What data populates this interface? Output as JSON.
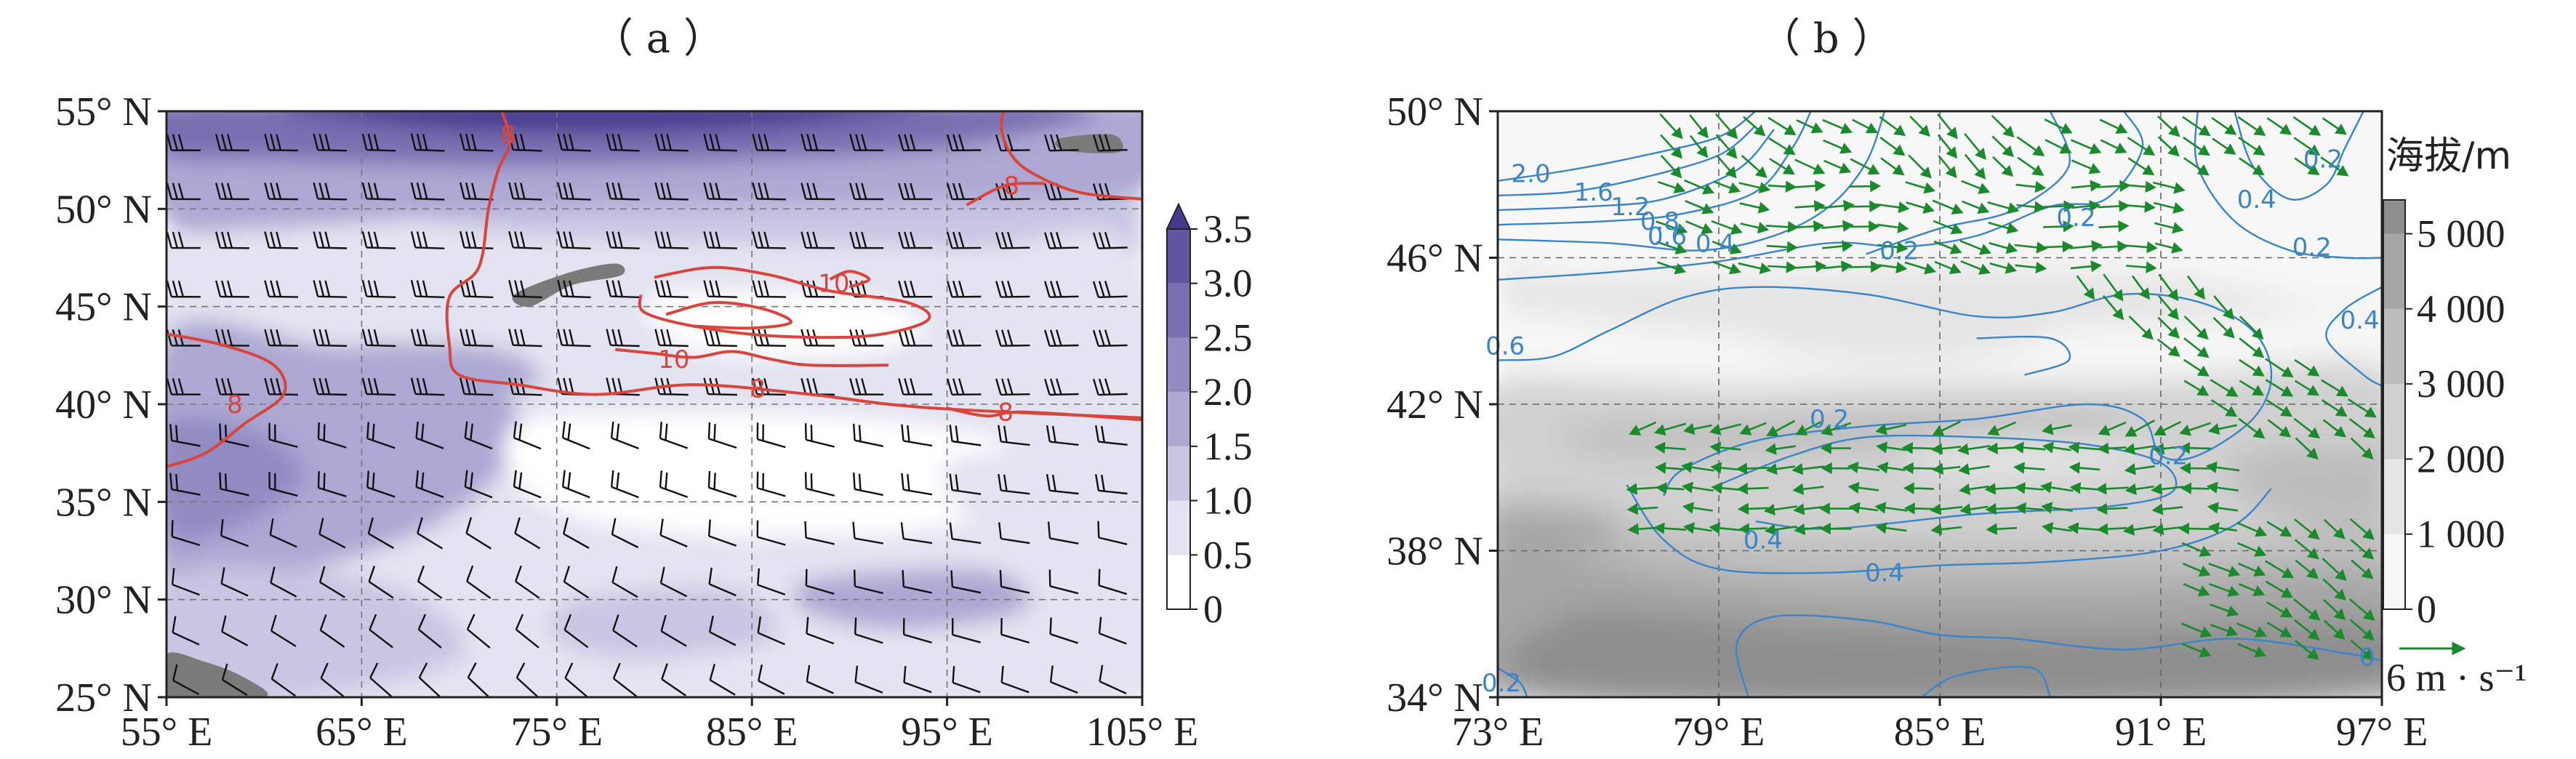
{
  "panels": {
    "a": {
      "label": "（ a ）"
    },
    "b": {
      "label": "（ b ）"
    }
  },
  "chart_data": [
    {
      "type": "heatmap",
      "panel": "a",
      "title": "",
      "xlabel": "",
      "ylabel": "",
      "xlim": [
        55,
        105
      ],
      "ylim": [
        25,
        55
      ],
      "x_ticks": [
        55,
        65,
        75,
        85,
        95,
        105
      ],
      "x_tick_labels": [
        "55° E",
        "65° E",
        "75° E",
        "85° E",
        "95° E",
        "105° E"
      ],
      "y_ticks": [
        25,
        30,
        35,
        40,
        45,
        50,
        55
      ],
      "y_tick_labels": [
        "25° N",
        "30° N",
        "35° N",
        "40° N",
        "45° N",
        "50° N",
        "55° N"
      ],
      "grid": "dashed",
      "colorbar": {
        "levels": [
          0,
          0.5,
          1.0,
          1.5,
          2.0,
          2.5,
          3.0,
          3.5
        ],
        "tick_labels": [
          "0",
          "0.5",
          "1.0",
          "1.5",
          "2.0",
          "2.5",
          "3.0",
          "3.5"
        ],
        "extend": "max",
        "colors": [
          "#ffffff",
          "#e3e3f1",
          "#c8c6e3",
          "#aca8d3",
          "#918bc2",
          "#7870b1",
          "#5f55a0",
          "#463a90"
        ]
      },
      "contour_color": "#d9453d",
      "contour_labels": [
        {
          "text": "8",
          "lon": 72.5,
          "lat": 53.8
        },
        {
          "text": "8",
          "lon": 98.3,
          "lat": 51.2
        },
        {
          "text": "10",
          "lon": 89.2,
          "lat": 46.2
        },
        {
          "text": "10",
          "lon": 81,
          "lat": 42.3
        },
        {
          "text": "8",
          "lon": 85.3,
          "lat": 40.8
        },
        {
          "text": "8",
          "lon": 98,
          "lat": 39.6
        },
        {
          "text": "8",
          "lon": 58.5,
          "lat": 40
        }
      ],
      "terrain_patch_color": "#7a7a7a"
    },
    {
      "type": "contour",
      "panel": "b",
      "title": "",
      "xlabel": "",
      "ylabel": "",
      "xlim": [
        73,
        97
      ],
      "ylim": [
        34,
        50
      ],
      "x_ticks": [
        73,
        79,
        85,
        91,
        97
      ],
      "x_tick_labels": [
        "73° E",
        "79° E",
        "85° E",
        "91° E",
        "97° E"
      ],
      "y_ticks": [
        34,
        38,
        42,
        46,
        50
      ],
      "y_tick_labels": [
        "34° N",
        "38° N",
        "42° N",
        "46° N",
        "50° N"
      ],
      "grid": "dashed",
      "colorbar": {
        "title": "海拔/m",
        "levels": [
          0,
          1000,
          2000,
          3000,
          4000,
          5000
        ],
        "tick_labels": [
          "0",
          "1 000",
          "2 000",
          "3 000",
          "4 000",
          "5 000"
        ],
        "colors": [
          "#f7f7f7",
          "#e4e4e4",
          "#d0d0d0",
          "#bcbcbc",
          "#a6a6a6",
          "#8e8e8e"
        ]
      },
      "contour_color": "#3a85c8",
      "contour_labels": [
        {
          "text": "2.0",
          "lon": 73.9,
          "lat": 48.3
        },
        {
          "text": "1.6",
          "lon": 75.6,
          "lat": 47.8
        },
        {
          "text": "1.2",
          "lon": 76.6,
          "lat": 47.4
        },
        {
          "text": "0.8",
          "lon": 77.4,
          "lat": 47
        },
        {
          "text": "0.6",
          "lon": 77.6,
          "lat": 46.6
        },
        {
          "text": "0.4",
          "lon": 78.9,
          "lat": 46.4
        },
        {
          "text": "0.2",
          "lon": 83.9,
          "lat": 46.2
        },
        {
          "text": "0.2",
          "lon": 88.7,
          "lat": 47.1
        },
        {
          "text": "0.2",
          "lon": 95.4,
          "lat": 48.7
        },
        {
          "text": "0.4",
          "lon": 93.6,
          "lat": 47.6
        },
        {
          "text": "0.2",
          "lon": 95.1,
          "lat": 46.3
        },
        {
          "text": "0.4",
          "lon": 96.4,
          "lat": 44.3
        },
        {
          "text": "0.6",
          "lon": 73.2,
          "lat": 43.6
        },
        {
          "text": "0.2",
          "lon": 82,
          "lat": 41.6
        },
        {
          "text": "0.4",
          "lon": 80.2,
          "lat": 38.3
        },
        {
          "text": "0.4",
          "lon": 83.5,
          "lat": 37.4
        },
        {
          "text": "0.2",
          "lon": 91.2,
          "lat": 40.6
        },
        {
          "text": "0",
          "lon": 96.6,
          "lat": 35.1
        },
        {
          "text": "0.2",
          "lon": 73.1,
          "lat": 34.4
        }
      ],
      "vector_color": "#1a8a2c",
      "reference_vector": {
        "label": "6 m · s⁻¹",
        "value": 6,
        "unit": "m·s⁻¹"
      }
    }
  ]
}
